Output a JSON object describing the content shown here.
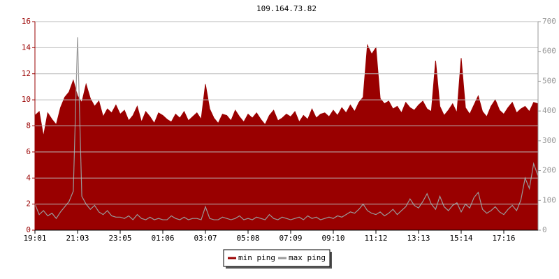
{
  "chart_data": {
    "type": "area",
    "title": "109.164.73.82",
    "categories": [
      "19:01",
      null,
      null,
      null,
      null,
      null,
      null,
      null,
      null,
      null,
      "21:03",
      null,
      null,
      null,
      null,
      null,
      null,
      null,
      null,
      null,
      "23:05",
      null,
      null,
      null,
      null,
      null,
      null,
      null,
      null,
      null,
      "01:06",
      null,
      null,
      null,
      null,
      null,
      null,
      null,
      null,
      null,
      "03:07",
      null,
      null,
      null,
      null,
      null,
      null,
      null,
      null,
      null,
      "05:08",
      null,
      null,
      null,
      null,
      null,
      null,
      null,
      null,
      null,
      "07:09",
      null,
      null,
      null,
      null,
      null,
      null,
      null,
      null,
      null,
      "09:10",
      null,
      null,
      null,
      null,
      null,
      null,
      null,
      null,
      null,
      "11:12",
      null,
      null,
      null,
      null,
      null,
      null,
      null,
      null,
      null,
      "13:13",
      null,
      null,
      null,
      null,
      null,
      null,
      null,
      null,
      null,
      "15:14",
      null,
      null,
      null,
      null,
      null,
      null,
      null,
      null,
      null,
      "17:16",
      null,
      null,
      null,
      null,
      null,
      null,
      null,
      null
    ],
    "series": [
      {
        "name": "min ping",
        "color": "#990000",
        "values": [
          8.8,
          9.1,
          7.2,
          9.0,
          8.5,
          8.1,
          9.4,
          10.2,
          10.6,
          11.5,
          10.3,
          9.8,
          11.2,
          10.1,
          9.5,
          9.9,
          8.7,
          9.3,
          9.0,
          9.6,
          8.9,
          9.2,
          8.4,
          8.8,
          9.5,
          8.3,
          9.1,
          8.7,
          8.2,
          9.0,
          8.8,
          8.5,
          8.3,
          8.9,
          8.6,
          9.1,
          8.4,
          8.7,
          9.0,
          8.5,
          11.2,
          9.3,
          8.6,
          8.2,
          8.9,
          8.8,
          8.4,
          9.2,
          8.7,
          8.3,
          8.9,
          8.6,
          9.0,
          8.5,
          8.1,
          8.8,
          9.2,
          8.4,
          8.6,
          8.9,
          8.7,
          9.1,
          8.3,
          8.8,
          8.5,
          9.3,
          8.6,
          8.9,
          9.0,
          8.7,
          9.2,
          8.8,
          9.4,
          9.0,
          9.6,
          9.1,
          9.8,
          10.2,
          14.2,
          13.5,
          14.0,
          10.1,
          9.7,
          9.9,
          9.3,
          9.5,
          9.0,
          9.8,
          9.4,
          9.2,
          9.6,
          9.9,
          9.3,
          9.1,
          13.0,
          9.5,
          8.8,
          9.2,
          9.7,
          9.0,
          13.2,
          9.4,
          8.9,
          9.6,
          10.3,
          9.1,
          8.7,
          9.5,
          10.0,
          9.2,
          8.9,
          9.4,
          9.8,
          9.0,
          9.3,
          9.5,
          9.1,
          9.8,
          9.7
        ]
      },
      {
        "name": "max ping",
        "color": "#999999",
        "values": [
          2.0,
          1.2,
          1.5,
          1.1,
          1.3,
          0.9,
          1.4,
          1.8,
          2.2,
          3.0,
          14.8,
          2.6,
          2.0,
          1.6,
          1.9,
          1.4,
          1.2,
          1.5,
          1.1,
          1.0,
          1.0,
          0.9,
          1.1,
          0.8,
          1.2,
          0.9,
          0.8,
          1.0,
          0.8,
          0.9,
          0.8,
          0.8,
          1.1,
          0.9,
          0.8,
          1.0,
          0.8,
          0.9,
          0.9,
          0.8,
          1.8,
          0.9,
          0.8,
          0.8,
          1.0,
          0.9,
          0.8,
          0.9,
          1.1,
          0.8,
          0.9,
          0.8,
          1.0,
          0.9,
          0.8,
          1.2,
          0.9,
          0.8,
          1.0,
          0.9,
          0.8,
          0.9,
          1.0,
          0.8,
          1.1,
          0.9,
          1.0,
          0.8,
          0.9,
          1.0,
          0.9,
          1.1,
          1.0,
          1.2,
          1.4,
          1.3,
          1.6,
          2.0,
          1.5,
          1.3,
          1.2,
          1.4,
          1.1,
          1.3,
          1.6,
          1.2,
          1.5,
          1.8,
          2.4,
          1.9,
          1.7,
          2.2,
          2.8,
          2.0,
          1.6,
          2.6,
          1.8,
          1.5,
          1.9,
          2.1,
          1.4,
          2.0,
          1.7,
          2.5,
          2.9,
          1.6,
          1.3,
          1.5,
          1.8,
          1.4,
          1.2,
          1.6,
          1.9,
          1.5,
          2.3,
          4.0,
          3.2,
          5.1,
          4.2
        ]
      }
    ],
    "ylim": [
      0,
      16
    ],
    "yticks": [
      0,
      2,
      4,
      6,
      8,
      10,
      12,
      14,
      16
    ],
    "y2lim": [
      0,
      700
    ],
    "y2ticks": [
      0,
      100,
      200,
      300,
      400,
      500,
      600,
      700
    ],
    "grid": true,
    "legend": "bottom"
  }
}
